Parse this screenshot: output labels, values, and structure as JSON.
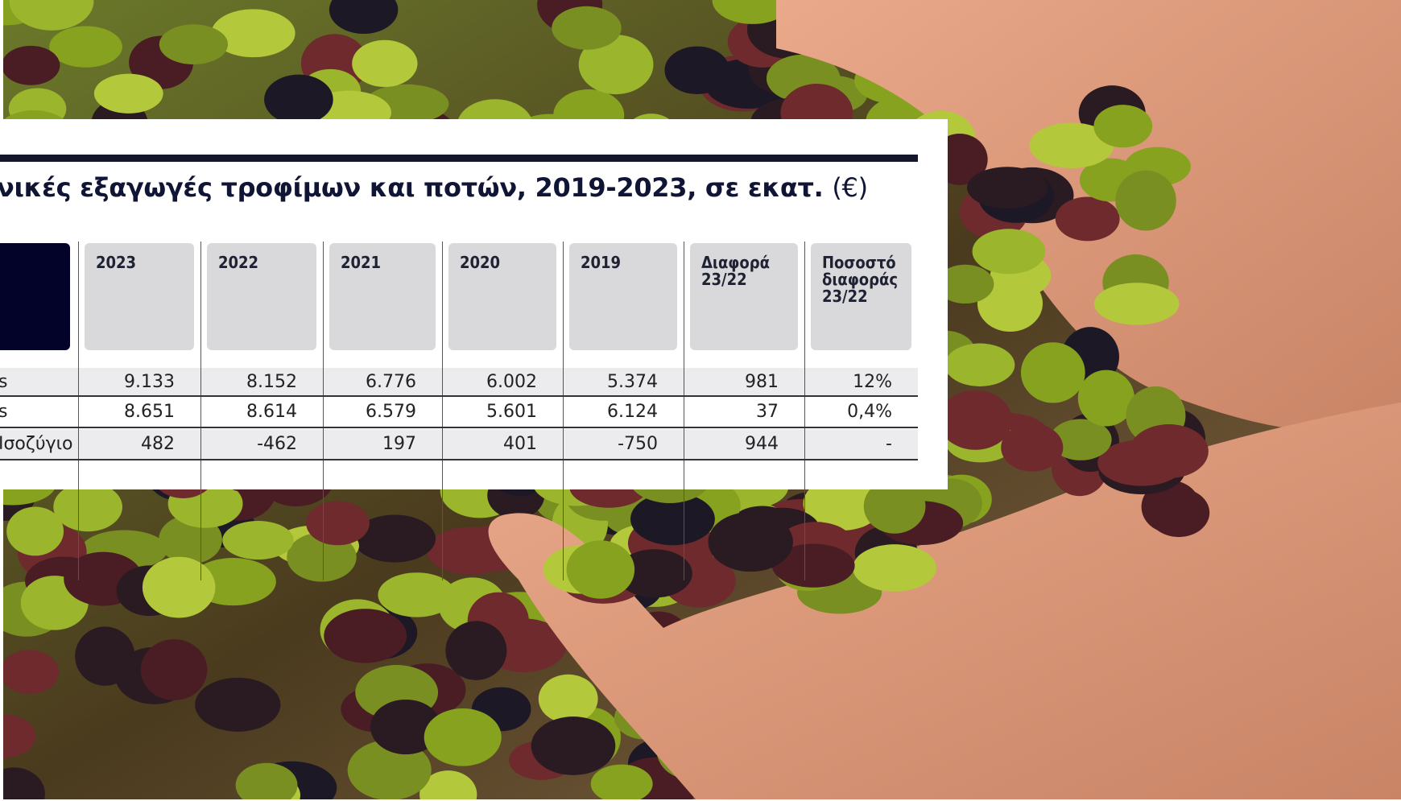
{
  "title": {
    "text": "νικές εξαγωγές τροφίμων και ποτών, 2019-2023, σε εκατ.",
    "unit": "(€)"
  },
  "table": {
    "header": [
      "2023",
      "2022",
      "2021",
      "2020",
      "2019",
      "Διαφορά 23/22",
      "Ποσοστό διαφοράς 23/22"
    ],
    "rows": [
      [
        "s",
        "9.133",
        "8.152",
        "6.776",
        "6.002",
        "5.374",
        "981",
        "12%"
      ],
      [
        "s",
        "8.651",
        "8.614",
        "6.579",
        "5.601",
        "6.124",
        "37",
        "0,4%"
      ],
      [
        "Ισοζύγιο",
        "482",
        "-462",
        "197",
        "401",
        "-750",
        "944",
        "-"
      ]
    ]
  }
}
